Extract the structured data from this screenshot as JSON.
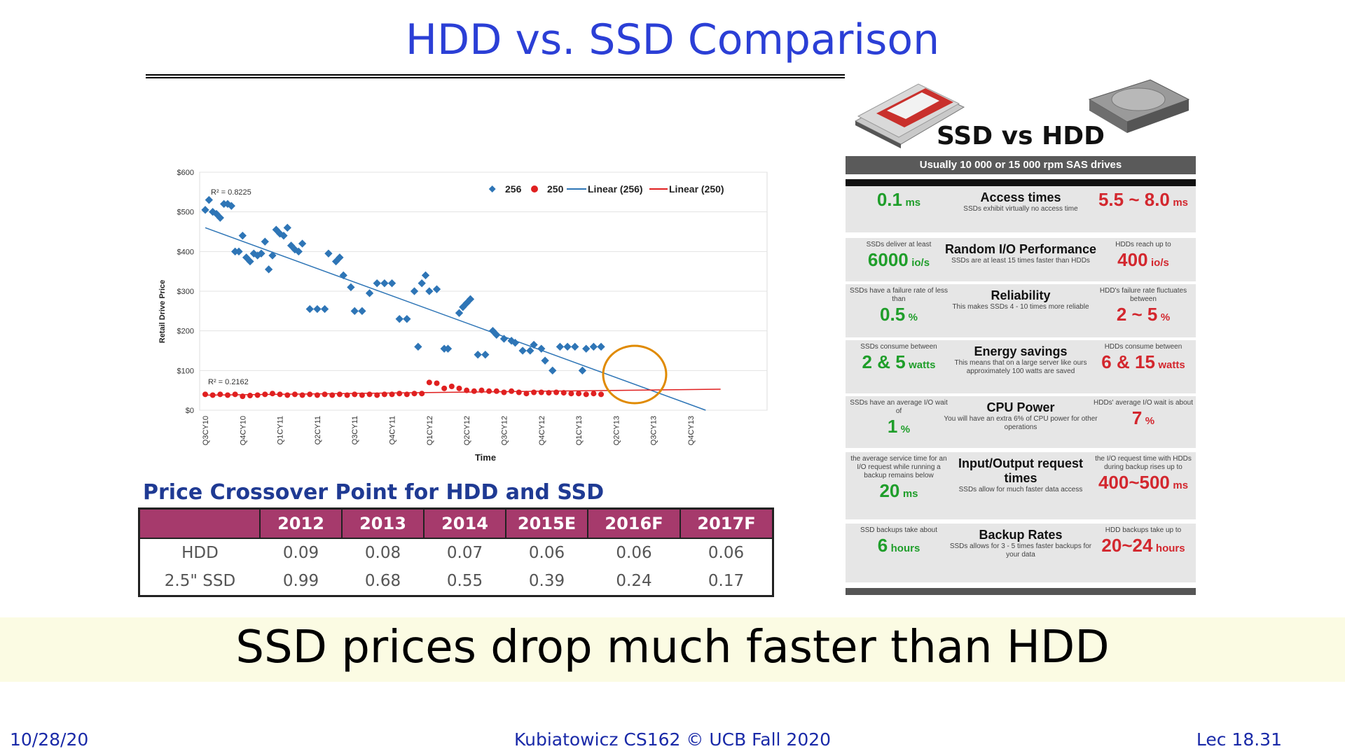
{
  "title": "HDD vs. SSD Comparison",
  "banner": "SSD prices drop much faster than HDD",
  "footer": {
    "date": "10/28/20",
    "course": "Kubiatowicz CS162 © UCB Fall 2020",
    "lecture": "Lec 18.31"
  },
  "chart_data": {
    "type": "scatter",
    "ylabel": "Retail Drive Price",
    "xlabel": "Time",
    "yticks": [
      "$0",
      "$100",
      "$200",
      "$300",
      "$400",
      "$500",
      "$600"
    ],
    "ylim": [
      0,
      600
    ],
    "categories": [
      "Q3CY10",
      "Q4CY10",
      "Q1CY11",
      "Q2CY11",
      "Q3CY11",
      "Q4CY11",
      "Q1CY12",
      "Q2CY12",
      "Q3CY12",
      "Q4CY12",
      "Q1CY13",
      "Q2CY13",
      "Q3CY13",
      "Q4CY13"
    ],
    "legend": [
      "256",
      "250",
      "Linear (256)",
      "Linear (250)"
    ],
    "r2_256": "R² = 0.8225",
    "r2_250": "R² = 0.2162",
    "series_256": [
      [
        0,
        505
      ],
      [
        0.1,
        530
      ],
      [
        0.2,
        500
      ],
      [
        0.3,
        495
      ],
      [
        0.4,
        485
      ],
      [
        0.5,
        520
      ],
      [
        0.6,
        520
      ],
      [
        0.7,
        515
      ],
      [
        0.8,
        400
      ],
      [
        0.9,
        400
      ],
      [
        1.0,
        440
      ],
      [
        1.1,
        385
      ],
      [
        1.2,
        375
      ],
      [
        1.3,
        395
      ],
      [
        1.4,
        390
      ],
      [
        1.5,
        395
      ],
      [
        1.6,
        425
      ],
      [
        1.7,
        355
      ],
      [
        1.8,
        390
      ],
      [
        1.9,
        455
      ],
      [
        2.0,
        445
      ],
      [
        2.1,
        440
      ],
      [
        2.2,
        460
      ],
      [
        2.3,
        415
      ],
      [
        2.4,
        405
      ],
      [
        2.5,
        400
      ],
      [
        2.6,
        420
      ],
      [
        2.8,
        255
      ],
      [
        3.0,
        255
      ],
      [
        3.2,
        255
      ],
      [
        3.3,
        395
      ],
      [
        3.5,
        375
      ],
      [
        3.6,
        385
      ],
      [
        3.7,
        340
      ],
      [
        3.9,
        310
      ],
      [
        4.0,
        250
      ],
      [
        4.2,
        250
      ],
      [
        4.4,
        295
      ],
      [
        4.6,
        320
      ],
      [
        4.8,
        320
      ],
      [
        5.0,
        320
      ],
      [
        5.2,
        230
      ],
      [
        5.4,
        230
      ],
      [
        5.6,
        300
      ],
      [
        5.7,
        160
      ],
      [
        5.8,
        320
      ],
      [
        5.9,
        340
      ],
      [
        6.0,
        300
      ],
      [
        6.2,
        305
      ],
      [
        6.4,
        155
      ],
      [
        6.5,
        155
      ],
      [
        6.8,
        245
      ],
      [
        6.9,
        260
      ],
      [
        7.0,
        270
      ],
      [
        7.1,
        280
      ],
      [
        7.3,
        140
      ],
      [
        7.5,
        140
      ],
      [
        7.7,
        200
      ],
      [
        7.8,
        190
      ],
      [
        8.0,
        180
      ],
      [
        8.2,
        175
      ],
      [
        8.3,
        170
      ],
      [
        8.5,
        150
      ],
      [
        8.7,
        150
      ],
      [
        8.8,
        165
      ],
      [
        9.0,
        155
      ],
      [
        9.1,
        125
      ],
      [
        9.3,
        100
      ],
      [
        9.5,
        160
      ],
      [
        9.7,
        160
      ],
      [
        9.9,
        160
      ],
      [
        10.1,
        100
      ],
      [
        10.2,
        155
      ],
      [
        10.4,
        160
      ],
      [
        10.6,
        160
      ]
    ],
    "series_250": [
      [
        0,
        40
      ],
      [
        0.2,
        38
      ],
      [
        0.4,
        40
      ],
      [
        0.6,
        38
      ],
      [
        0.8,
        40
      ],
      [
        1.0,
        35
      ],
      [
        1.2,
        37
      ],
      [
        1.4,
        38
      ],
      [
        1.6,
        40
      ],
      [
        1.8,
        42
      ],
      [
        2.0,
        40
      ],
      [
        2.2,
        38
      ],
      [
        2.4,
        40
      ],
      [
        2.6,
        38
      ],
      [
        2.8,
        40
      ],
      [
        3.0,
        38
      ],
      [
        3.2,
        40
      ],
      [
        3.4,
        38
      ],
      [
        3.6,
        40
      ],
      [
        3.8,
        38
      ],
      [
        4.0,
        40
      ],
      [
        4.2,
        38
      ],
      [
        4.4,
        40
      ],
      [
        4.6,
        38
      ],
      [
        4.8,
        40
      ],
      [
        5.0,
        40
      ],
      [
        5.2,
        42
      ],
      [
        5.4,
        40
      ],
      [
        5.6,
        42
      ],
      [
        5.8,
        42
      ],
      [
        6.0,
        70
      ],
      [
        6.2,
        68
      ],
      [
        6.4,
        55
      ],
      [
        6.6,
        60
      ],
      [
        6.8,
        55
      ],
      [
        7.0,
        50
      ],
      [
        7.2,
        48
      ],
      [
        7.4,
        50
      ],
      [
        7.6,
        48
      ],
      [
        7.8,
        48
      ],
      [
        8.0,
        45
      ],
      [
        8.2,
        48
      ],
      [
        8.4,
        45
      ],
      [
        8.6,
        42
      ],
      [
        8.8,
        45
      ],
      [
        9.0,
        45
      ],
      [
        9.2,
        44
      ],
      [
        9.4,
        45
      ],
      [
        9.6,
        44
      ],
      [
        9.8,
        42
      ],
      [
        10.0,
        42
      ],
      [
        10.2,
        40
      ],
      [
        10.4,
        42
      ],
      [
        10.6,
        40
      ]
    ],
    "trend_256": [
      [
        0,
        460
      ],
      [
        13.4,
        0
      ]
    ],
    "trend_250": [
      [
        0,
        38
      ],
      [
        13.8,
        53
      ]
    ]
  },
  "price_table": {
    "title": "Price Crossover Point for HDD and SSD",
    "columns": [
      "",
      "2012",
      "2013",
      "2014",
      "2015E",
      "2016F",
      "2017F"
    ],
    "rows": [
      {
        "label": "HDD",
        "values": [
          "0.09",
          "0.08",
          "0.07",
          "0.06",
          "0.06",
          "0.06"
        ]
      },
      {
        "label": "2.5\" SSD",
        "values": [
          "0.99",
          "0.68",
          "0.55",
          "0.39",
          "0.24",
          "0.17"
        ]
      }
    ]
  },
  "info": {
    "heading": "SSD vs HDD",
    "subheading": "Usually 10 000 or 15 000 rpm SAS drives",
    "rows": [
      {
        "left_note": "",
        "left_val": "0.1",
        "left_unit": "ms",
        "title": "Access times",
        "desc": "SSDs exhibit virtually no access time",
        "right_note": "",
        "right_val": "5.5 ~ 8.0",
        "right_unit": "ms"
      },
      {
        "left_note": "SSDs deliver at least",
        "left_val": "6000",
        "left_unit": "io/s",
        "title": "Random I/O Performance",
        "desc": "SSDs are at least 15 times faster than HDDs",
        "right_note": "HDDs reach up to",
        "right_val": "400",
        "right_unit": "io/s"
      },
      {
        "left_note": "SSDs have a failure rate of less than",
        "left_val": "0.5",
        "left_unit": "%",
        "title": "Reliability",
        "desc": "This makes SSDs 4 - 10 times more reliable",
        "right_note": "HDD's failure rate fluctuates between",
        "right_val": "2 ~ 5",
        "right_unit": "%"
      },
      {
        "left_note": "SSDs consume between",
        "left_val": "2 & 5",
        "left_unit": "watts",
        "title": "Energy savings",
        "desc": "This means that on a large server like ours approximately 100 watts are saved",
        "right_note": "HDDs consume between",
        "right_val": "6 & 15",
        "right_unit": "watts"
      },
      {
        "left_note": "SSDs have an average I/O wait of",
        "left_val": "1",
        "left_unit": "%",
        "title": "CPU Power",
        "desc": "You will have an extra 6% of CPU power for other operations",
        "right_note": "HDDs' average I/O wait is about",
        "right_val": "7",
        "right_unit": "%"
      },
      {
        "left_note": "the average service time for an I/O request while running a backup remains below",
        "left_val": "20",
        "left_unit": "ms",
        "title": "Input/Output request times",
        "desc": "SSDs allow for much faster data access",
        "right_note": "the I/O request time with HDDs during backup rises up to",
        "right_val": "400~500",
        "right_unit": "ms"
      },
      {
        "left_note": "SSD backups take about",
        "left_val": "6",
        "left_unit": "hours",
        "title": "Backup Rates",
        "desc": "SSDs allows for 3 - 5 times faster backups for your data",
        "right_note": "HDD backups take up to",
        "right_val": "20~24",
        "right_unit": "hours"
      }
    ]
  },
  "colors": {
    "title": "#2b3fd6",
    "series_256": "#2e75b6",
    "series_250": "#e02020",
    "highlight": "#e08a00",
    "table_header": "#a63a6c",
    "green": "#1f9e2a",
    "red": "#d3272e"
  }
}
